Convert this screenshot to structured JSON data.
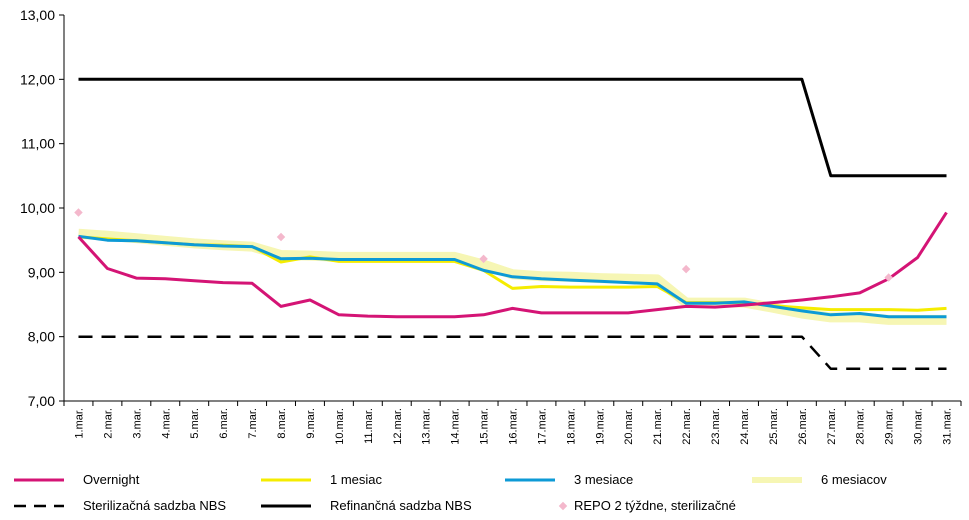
{
  "chart_data": {
    "type": "line",
    "title": "",
    "xlabel": "",
    "ylabel": "",
    "ylim": [
      7,
      13
    ],
    "yticks": [
      "7,00",
      "8,00",
      "9,00",
      "10,00",
      "11,00",
      "12,00",
      "13,00"
    ],
    "categories": [
      "1.mar.",
      "2.mar.",
      "3.mar.",
      "4.mar.",
      "5.mar.",
      "6.mar.",
      "7.mar.",
      "8.mar.",
      "9.mar.",
      "10.mar.",
      "11.mar.",
      "12.mar.",
      "13.mar.",
      "14.mar.",
      "15.mar.",
      "16.mar.",
      "17.mar.",
      "18.mar.",
      "19.mar.",
      "20.mar.",
      "21.mar.",
      "22.mar.",
      "23.mar.",
      "24.mar.",
      "25.mar.",
      "26.mar.",
      "27.mar.",
      "28.mar.",
      "29.mar.",
      "30.mar.",
      "31.mar."
    ],
    "legend_position": "bottom",
    "series": [
      {
        "name": "6 mesiacov",
        "color": "#f6f6b4",
        "style": "solid",
        "kind": "line",
        "values": [
          9.6,
          9.57,
          9.53,
          9.49,
          9.45,
          9.42,
          9.4,
          9.27,
          9.26,
          9.24,
          9.24,
          9.24,
          9.24,
          9.24,
          9.12,
          8.97,
          8.94,
          8.93,
          8.91,
          8.9,
          8.89,
          8.53,
          8.53,
          8.53,
          8.45,
          8.36,
          8.3,
          8.3,
          8.26,
          8.26,
          8.26
        ]
      },
      {
        "name": "1 mesiac",
        "color": "#f5ec00",
        "style": "solid",
        "kind": "line",
        "values": [
          9.55,
          9.52,
          9.49,
          9.46,
          9.43,
          9.42,
          9.4,
          9.16,
          9.24,
          9.17,
          9.17,
          9.17,
          9.17,
          9.17,
          9.03,
          8.75,
          8.78,
          8.77,
          8.77,
          8.77,
          8.78,
          8.53,
          8.53,
          8.53,
          8.48,
          8.45,
          8.42,
          8.42,
          8.42,
          8.41,
          8.44
        ]
      },
      {
        "name": "3 mesiace",
        "color": "#0d9ad6",
        "style": "solid",
        "kind": "line",
        "values": [
          9.56,
          9.5,
          9.49,
          9.46,
          9.43,
          9.41,
          9.4,
          9.21,
          9.22,
          9.2,
          9.2,
          9.2,
          9.2,
          9.2,
          9.03,
          8.93,
          8.9,
          8.88,
          8.86,
          8.84,
          8.82,
          8.52,
          8.52,
          8.54,
          8.47,
          8.4,
          8.34,
          8.36,
          8.31,
          8.31,
          8.31
        ]
      },
      {
        "name": "Overnight",
        "color": "#d41475",
        "style": "solid",
        "kind": "line",
        "values": [
          9.55,
          9.06,
          8.91,
          8.9,
          8.87,
          8.84,
          8.83,
          8.47,
          8.57,
          8.34,
          8.32,
          8.31,
          8.31,
          8.31,
          8.34,
          8.44,
          8.37,
          8.37,
          8.37,
          8.37,
          8.42,
          8.47,
          8.46,
          8.49,
          8.53,
          8.57,
          8.62,
          8.68,
          8.9,
          9.23,
          9.93
        ]
      },
      {
        "name": "Sterilizačná sadzba NBS",
        "color": "#000000",
        "style": "dashed",
        "kind": "line",
        "values": [
          8.0,
          8.0,
          8.0,
          8.0,
          8.0,
          8.0,
          8.0,
          8.0,
          8.0,
          8.0,
          8.0,
          8.0,
          8.0,
          8.0,
          8.0,
          8.0,
          8.0,
          8.0,
          8.0,
          8.0,
          8.0,
          8.0,
          8.0,
          8.0,
          8.0,
          8.0,
          7.5,
          7.5,
          7.5,
          7.5,
          7.5
        ]
      },
      {
        "name": "Refinančná sadzba NBS",
        "color": "#000000",
        "style": "solid",
        "kind": "line",
        "values": [
          12.0,
          12.0,
          12.0,
          12.0,
          12.0,
          12.0,
          12.0,
          12.0,
          12.0,
          12.0,
          12.0,
          12.0,
          12.0,
          12.0,
          12.0,
          12.0,
          12.0,
          12.0,
          12.0,
          12.0,
          12.0,
          12.0,
          12.0,
          12.0,
          12.0,
          12.0,
          10.5,
          10.5,
          10.5,
          10.5,
          10.5
        ]
      },
      {
        "name": "REPO 2 týždne, sterilizačné",
        "color": "#f4b8cc",
        "style": "marker",
        "kind": "scatter",
        "points": [
          {
            "category": "1.mar.",
            "value": 9.93
          },
          {
            "category": "8.mar.",
            "value": 9.55
          },
          {
            "category": "15.mar.",
            "value": 9.21
          },
          {
            "category": "22.mar.",
            "value": 9.05
          },
          {
            "category": "29.mar.",
            "value": 8.92
          }
        ]
      }
    ],
    "legend_order": [
      "Overnight",
      "1 mesiac",
      "3 mesiace",
      "6 mesiacov",
      "Sterilizačná sadzba NBS",
      "Refinančná sadzba NBS",
      "REPO 2 týždne, sterilizačné"
    ]
  }
}
